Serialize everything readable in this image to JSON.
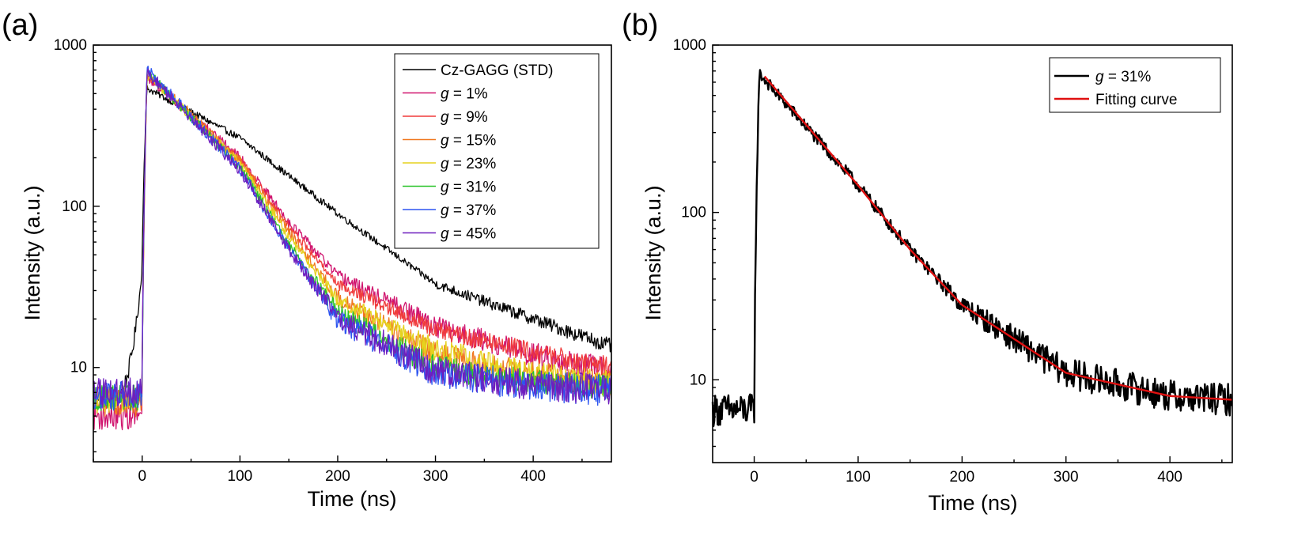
{
  "chart_data": [
    {
      "panel_label": "(a)",
      "type": "line",
      "x_scale": "linear",
      "y_scale": "log",
      "xlabel": "Time (ns)",
      "ylabel": "Intensity (a.u.)",
      "xlim": [
        -50,
        480
      ],
      "ylim": [
        2.6,
        1000
      ],
      "x_ticks": [
        0,
        100,
        200,
        300,
        400
      ],
      "x_tick_labels": [
        "0",
        "100",
        "200",
        "300",
        "400"
      ],
      "y_ticks": [
        10,
        100,
        1000
      ],
      "y_tick_labels": [
        "10",
        "100",
        "1000"
      ],
      "legend_position": "top-right",
      "series": [
        {
          "name": "Cz-GAGG (STD)",
          "prefix": "Cz-GAGG (STD)",
          "value": "",
          "color": "#000000",
          "baseline": 6.8,
          "peak": 560,
          "peak_t": 5,
          "rise": 15,
          "pre_rise_onset": -25,
          "decay_points": [
            [
              0,
              560
            ],
            [
              100,
              265
            ],
            [
              200,
              90
            ],
            [
              300,
              33
            ],
            [
              400,
              20
            ],
            [
              480,
              13.5
            ]
          ],
          "noise": 0.04
        },
        {
          "name": "g = 1%",
          "prefix": "g",
          "value": " = 1%",
          "color": "#d0146e",
          "baseline": 5.0,
          "peak": 680,
          "peak_t": 5,
          "rise": 6,
          "decay_points": [
            [
              0,
              680
            ],
            [
              100,
              200
            ],
            [
              150,
              80
            ],
            [
              200,
              37
            ],
            [
              300,
              18
            ],
            [
              400,
              12
            ],
            [
              480,
              9.5
            ]
          ],
          "noise": 0.06
        },
        {
          "name": "g = 9%",
          "prefix": "g",
          "value": " = 9%",
          "color": "#f03c3c",
          "baseline": 6.5,
          "peak": 690,
          "peak_t": 5,
          "rise": 6,
          "decay_points": [
            [
              0,
              690
            ],
            [
              100,
              195
            ],
            [
              150,
              75
            ],
            [
              200,
              33
            ],
            [
              300,
              17
            ],
            [
              400,
              12.5
            ],
            [
              480,
              10
            ]
          ],
          "noise": 0.05
        },
        {
          "name": "g = 15%",
          "prefix": "g",
          "value": " = 15%",
          "color": "#f07820",
          "baseline": 6.0,
          "peak": 720,
          "peak_t": 5,
          "rise": 6,
          "decay_points": [
            [
              0,
              720
            ],
            [
              100,
              190
            ],
            [
              150,
              70
            ],
            [
              200,
              27
            ],
            [
              300,
              12
            ],
            [
              400,
              9
            ],
            [
              480,
              8
            ]
          ],
          "noise": 0.06
        },
        {
          "name": "g = 23%",
          "prefix": "g",
          "value": " = 23%",
          "color": "#e6d21e",
          "baseline": 6.3,
          "peak": 700,
          "peak_t": 5,
          "rise": 6,
          "decay_points": [
            [
              0,
              700
            ],
            [
              100,
              185
            ],
            [
              150,
              65
            ],
            [
              200,
              26
            ],
            [
              300,
              13
            ],
            [
              400,
              9
            ],
            [
              480,
              8
            ]
          ],
          "noise": 0.06
        },
        {
          "name": "g = 31%",
          "prefix": "g",
          "value": " = 31%",
          "color": "#28c328",
          "baseline": 6.5,
          "peak": 730,
          "peak_t": 5,
          "rise": 6,
          "decay_points": [
            [
              0,
              730
            ],
            [
              100,
              175
            ],
            [
              150,
              58
            ],
            [
              200,
              22
            ],
            [
              300,
              10
            ],
            [
              400,
              8
            ],
            [
              480,
              7.5
            ]
          ],
          "noise": 0.06
        },
        {
          "name": "g = 37%",
          "prefix": "g",
          "value": " = 37%",
          "color": "#2d55f0",
          "baseline": 6.7,
          "peak": 760,
          "peak_t": 5,
          "rise": 6,
          "decay_points": [
            [
              0,
              760
            ],
            [
              100,
              170
            ],
            [
              150,
              55
            ],
            [
              200,
              20
            ],
            [
              300,
              9.2
            ],
            [
              400,
              7.6
            ],
            [
              480,
              7.2
            ]
          ],
          "noise": 0.07
        },
        {
          "name": "g = 45%",
          "prefix": "g",
          "value": " = 45%",
          "color": "#6e1ebe",
          "baseline": 6.9,
          "peak": 740,
          "peak_t": 5,
          "rise": 6,
          "decay_points": [
            [
              0,
              740
            ],
            [
              100,
              168
            ],
            [
              150,
              54
            ],
            [
              200,
              20
            ],
            [
              300,
              9.5
            ],
            [
              400,
              7.8
            ],
            [
              480,
              7.3
            ]
          ],
          "noise": 0.07
        }
      ]
    },
    {
      "panel_label": "(b)",
      "type": "line",
      "x_scale": "linear",
      "y_scale": "log",
      "xlabel": "Time (ns)",
      "ylabel": "Intensity (a.u.)",
      "xlim": [
        -40,
        460
      ],
      "ylim": [
        3.2,
        1000
      ],
      "x_ticks": [
        0,
        100,
        200,
        300,
        400
      ],
      "x_tick_labels": [
        "0",
        "100",
        "200",
        "300",
        "400"
      ],
      "y_ticks": [
        10,
        100,
        1000
      ],
      "y_tick_labels": [
        "10",
        "100",
        "1000"
      ],
      "legend_position": "top-right",
      "series": [
        {
          "name": "g = 31%",
          "prefix": "g",
          "value": " = 31%",
          "color": "#000000",
          "baseline": 6.6,
          "peak": 730,
          "peak_t": 5,
          "rise": 6,
          "decay_points": [
            [
              0,
              730
            ],
            [
              100,
              145
            ],
            [
              150,
              60
            ],
            [
              200,
              28
            ],
            [
              300,
              11
            ],
            [
              400,
              8
            ],
            [
              460,
              7.6
            ]
          ],
          "noise": 0.07,
          "stroke_width": 2.4
        },
        {
          "name": "Fitting curve",
          "prefix": "Fitting curve",
          "value": "",
          "color": "#e01010",
          "fit": true,
          "fit_start": 10,
          "peak": 730,
          "decay_points": [
            [
              10,
              650
            ],
            [
              100,
              145
            ],
            [
              150,
              60
            ],
            [
              200,
              28
            ],
            [
              300,
              11
            ],
            [
              400,
              8
            ],
            [
              460,
              7.6
            ]
          ],
          "noise": 0,
          "stroke_width": 2.4
        }
      ]
    }
  ]
}
